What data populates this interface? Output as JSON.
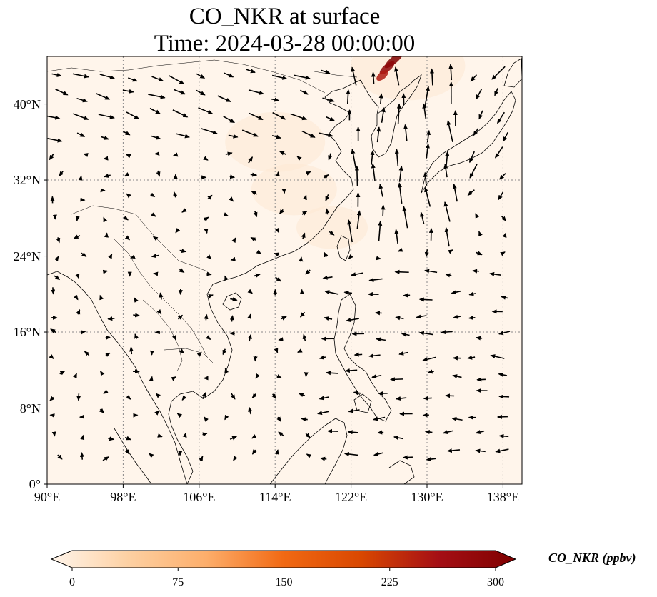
{
  "title_line1": "CO_NKR at surface",
  "title_line2": "Time: 2024-03-28 00:00:00",
  "map": {
    "extent": {
      "lon_min": 90,
      "lon_max": 140,
      "lat_min": 0,
      "lat_max": 45
    },
    "lat_ticks": [
      {
        "value": 0,
        "label": "0°"
      },
      {
        "value": 8,
        "label": "8°N"
      },
      {
        "value": 16,
        "label": "16°N"
      },
      {
        "value": 24,
        "label": "24°N"
      },
      {
        "value": 32,
        "label": "32°N"
      },
      {
        "value": 40,
        "label": "40°N"
      }
    ],
    "lon_ticks": [
      {
        "value": 90,
        "label": "90°E"
      },
      {
        "value": 98,
        "label": "98°E"
      },
      {
        "value": 106,
        "label": "106°E"
      },
      {
        "value": 114,
        "label": "114°E"
      },
      {
        "value": 122,
        "label": "122°E"
      },
      {
        "value": 130,
        "label": "130°E"
      },
      {
        "value": 138,
        "label": "138°E"
      }
    ],
    "background_color": "#fff5eb",
    "gridlines": "dotted",
    "plume": [
      {
        "lon": 126.5,
        "lat": 44.6,
        "value": 300
      },
      {
        "lon": 125.8,
        "lat": 43.8,
        "value": 280
      },
      {
        "lon": 125.3,
        "lat": 43.0,
        "value": 240
      }
    ]
  },
  "colorbar": {
    "label": "CO_NKR (ppbv)",
    "min": 0,
    "max": 300,
    "ticks": [
      {
        "value": 0,
        "label": "0"
      },
      {
        "value": 75,
        "label": "75"
      },
      {
        "value": 150,
        "label": "150"
      },
      {
        "value": 225,
        "label": "225"
      },
      {
        "value": 300,
        "label": "300"
      }
    ],
    "colormap": [
      "#fff5eb",
      "#fdd0a2",
      "#fdae6b",
      "#f16913",
      "#d94801",
      "#a50f15",
      "#7f0000"
    ],
    "extend": "both"
  }
}
